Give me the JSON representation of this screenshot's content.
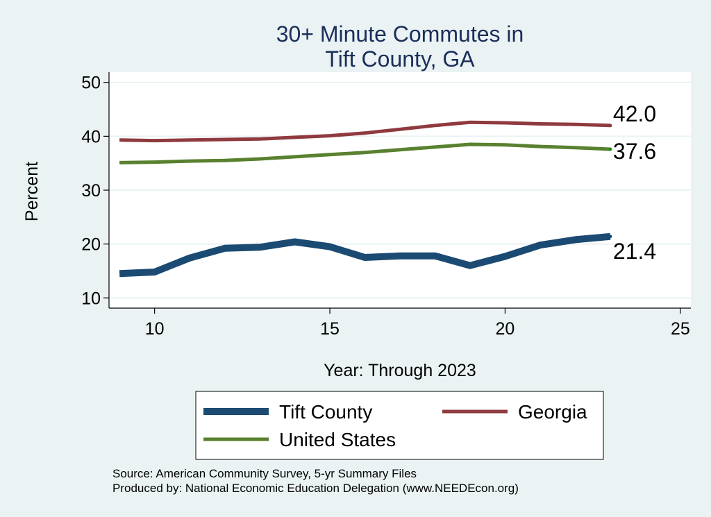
{
  "chart_data": {
    "type": "line",
    "title": [
      "30+ Minute Commutes in",
      "Tift County, GA"
    ],
    "xlabel": "Year: Through 2023",
    "ylabel": "Percent",
    "xlim": [
      8.7,
      25.3
    ],
    "ylim": [
      8.1,
      51.9
    ],
    "xticks": [
      10,
      15,
      20,
      25
    ],
    "yticks": [
      10,
      20,
      30,
      40,
      50
    ],
    "grid": true,
    "legend_position": "bottom",
    "x": [
      9,
      10,
      11,
      12,
      13,
      14,
      15,
      16,
      17,
      18,
      19,
      20,
      21,
      22,
      23
    ],
    "series": [
      {
        "name": "Tift County",
        "color": "#1b4a72",
        "values": [
          14.5,
          14.8,
          17.4,
          19.2,
          19.4,
          20.4,
          19.5,
          17.5,
          17.8,
          17.8,
          16.0,
          17.7,
          19.8,
          20.8,
          21.4
        ],
        "end_label": "21.4"
      },
      {
        "name": "Georgia",
        "color": "#8f3a3f",
        "values": [
          39.3,
          39.2,
          39.3,
          39.4,
          39.5,
          39.8,
          40.1,
          40.6,
          41.3,
          42.0,
          42.6,
          42.5,
          42.3,
          42.2,
          42.0
        ],
        "end_label": "42.0"
      },
      {
        "name": "United States",
        "color": "#59812f",
        "values": [
          35.1,
          35.2,
          35.4,
          35.5,
          35.8,
          36.2,
          36.6,
          37.0,
          37.5,
          38.0,
          38.5,
          38.4,
          38.1,
          37.9,
          37.6
        ],
        "end_label": "37.6"
      }
    ],
    "notes": [
      "Source: American Community Survey, 5-yr Summary Files",
      "Produced by: National Economic Education Delegation (www.NEEDEcon.org)"
    ]
  }
}
